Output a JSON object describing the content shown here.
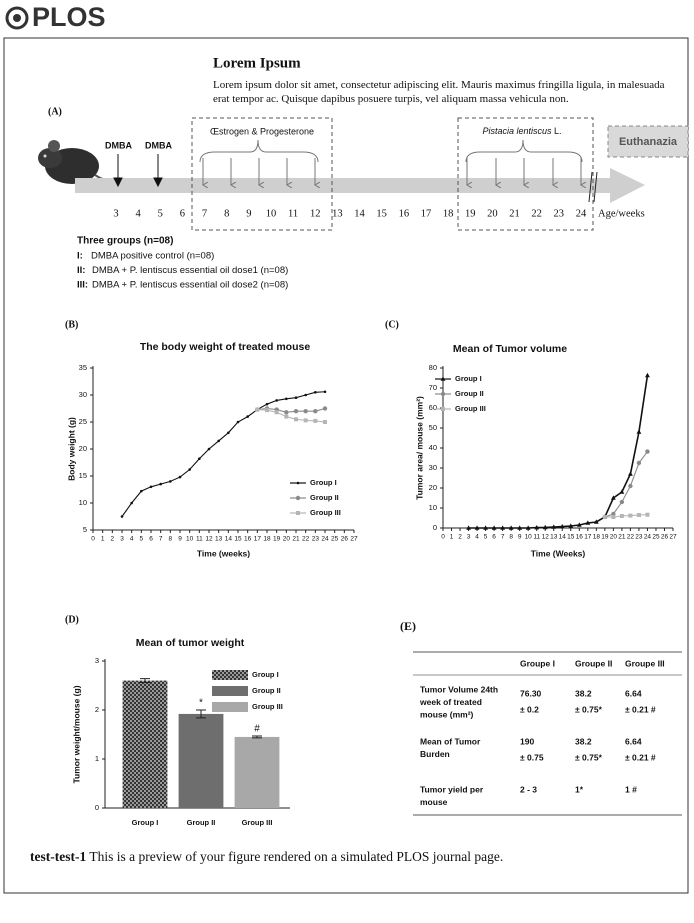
{
  "header": {
    "logo": "PLOS"
  },
  "article": {
    "title": "Lorem Ipsum",
    "body": "Lorem ipsum dolor sit amet, consectetur adipiscing elit. Mauris maximus fringilla ligula, in malesuada erat tempor ac. Quisque dapibus posuere turpis, vel aliquam massa vehicula non."
  },
  "timeline": {
    "label": "(A)",
    "dmba": [
      "DMBA",
      "DMBA"
    ],
    "hormone_label": "Œstrogen & Progesterone",
    "treatment_label": "Pistacia lentiscus",
    "treatment_suffix": "L.",
    "end_label": "Euthanazia",
    "weeks": [
      3,
      4,
      5,
      6,
      7,
      8,
      9,
      10,
      11,
      12,
      13,
      14,
      15,
      16,
      17,
      18,
      19,
      20,
      21,
      22,
      23,
      24
    ],
    "axis_label": "Age/weeks",
    "groups_title": "Three groups (n=08)",
    "groups": [
      {
        "num": "I:",
        "text": "DMBA positive control (n=08)"
      },
      {
        "num": "II:",
        "text": "DMBA + P. lentiscus essential oil dose1 (n=08)"
      },
      {
        "num": "III:",
        "text": "DMBA + P. lentiscus essential oil dose2 (n=08)"
      }
    ]
  },
  "chart_data": [
    {
      "type": "line",
      "label": "(B)",
      "title": "The body weight of treated mouse",
      "xlabel": "Time (weeks)",
      "ylabel": "Body weight (g)",
      "x": [
        3,
        4,
        5,
        6,
        7,
        8,
        9,
        10,
        11,
        12,
        13,
        14,
        15,
        16,
        17,
        18,
        19,
        20,
        21,
        22,
        23,
        24
      ],
      "series": [
        {
          "name": "Group I",
          "color": "#111111",
          "marker": "dot",
          "values": [
            7.5,
            10,
            12.2,
            13,
            13.5,
            14,
            14.8,
            16.2,
            18.2,
            20,
            21.5,
            23,
            25,
            26,
            27.3,
            28.3,
            29,
            29.3,
            29.5,
            30,
            30.5,
            30.6
          ]
        },
        {
          "name": "Group II",
          "color": "#8a8a8a",
          "marker": "circle",
          "values": [
            null,
            null,
            null,
            null,
            null,
            null,
            null,
            null,
            null,
            null,
            null,
            null,
            null,
            null,
            27.3,
            27.5,
            27.3,
            26.8,
            27,
            27,
            27,
            27.5
          ]
        },
        {
          "name": "Group III",
          "color": "#b5b5b5",
          "marker": "square",
          "values": [
            null,
            null,
            null,
            null,
            null,
            null,
            null,
            null,
            null,
            null,
            null,
            null,
            null,
            null,
            27.3,
            27.2,
            26.8,
            26,
            25.5,
            25.3,
            25.2,
            25
          ]
        }
      ],
      "xlim": [
        0,
        27
      ],
      "xticks": [
        0,
        1,
        2,
        3,
        4,
        5,
        6,
        7,
        8,
        9,
        10,
        11,
        12,
        13,
        14,
        15,
        16,
        17,
        18,
        19,
        20,
        21,
        22,
        23,
        24,
        25,
        26,
        27
      ],
      "ylim": [
        5,
        35
      ],
      "yticks": [
        5,
        10,
        15,
        20,
        25,
        30,
        35
      ],
      "legend": "lower right"
    },
    {
      "type": "line",
      "label": "(C)",
      "title": "Mean of Tumor volume",
      "xlabel": "Time (Weeks)",
      "ylabel": "Tumor area/ mouse (mm²)",
      "x": [
        3,
        4,
        5,
        6,
        7,
        8,
        9,
        10,
        11,
        12,
        13,
        14,
        15,
        16,
        17,
        18,
        19,
        20,
        21,
        22,
        23,
        24
      ],
      "series": [
        {
          "name": "Group I",
          "color": "#111111",
          "marker": "triangle",
          "values": [
            0,
            0,
            0,
            0,
            0,
            0,
            0,
            0,
            0.2,
            0.3,
            0.5,
            0.7,
            1,
            1.5,
            2.5,
            3,
            5.5,
            15,
            18,
            27,
            48,
            76.3
          ]
        },
        {
          "name": "Group II",
          "color": "#8a8a8a",
          "marker": "circle",
          "values": [
            null,
            null,
            null,
            null,
            null,
            null,
            null,
            null,
            null,
            null,
            null,
            null,
            null,
            null,
            null,
            null,
            5.5,
            7,
            13,
            21,
            32.5,
            38.2
          ]
        },
        {
          "name": "Group III",
          "color": "#b5b5b5",
          "marker": "square",
          "values": [
            null,
            null,
            null,
            null,
            null,
            null,
            null,
            null,
            null,
            null,
            null,
            null,
            null,
            null,
            null,
            null,
            5.5,
            5.5,
            6,
            6.2,
            6.5,
            6.64
          ]
        }
      ],
      "xlim": [
        0,
        27
      ],
      "xticks": [
        0,
        1,
        2,
        3,
        4,
        5,
        6,
        7,
        8,
        9,
        10,
        11,
        12,
        13,
        14,
        15,
        16,
        17,
        18,
        19,
        20,
        21,
        22,
        23,
        24,
        25,
        26,
        27
      ],
      "ylim": [
        0,
        80
      ],
      "yticks": [
        0,
        10,
        20,
        30,
        40,
        50,
        60,
        70,
        80
      ],
      "legend": "upper left"
    },
    {
      "type": "bar",
      "label": "(D)",
      "title": "Mean of tumor weight",
      "ylabel": "Tumor weight/mouse (g)",
      "categories": [
        "Group I",
        "Group II",
        "Group III"
      ],
      "values": [
        2.6,
        1.92,
        1.45
      ],
      "errors": [
        0.04,
        0.08,
        0.02
      ],
      "bar_labels": [
        null,
        "*",
        "#"
      ],
      "colors": [
        "#3a3a3a",
        "#6e6e6e",
        "#a8a8a8"
      ],
      "checkered": [
        true,
        false,
        false
      ],
      "ylim": [
        0,
        3
      ],
      "yticks": [
        0,
        1,
        2,
        3
      ],
      "legend": "upper right"
    }
  ],
  "table": {
    "label": "(E)",
    "header": [
      "Groupe I",
      "Groupe II",
      "Groupe III"
    ],
    "rows": [
      {
        "label": [
          "Tumor Volume 24th",
          "week  of treated",
          "mouse (mm²)"
        ],
        "cells": [
          [
            "76.30",
            "± 0.2"
          ],
          [
            "38.2",
            "± 0.75*"
          ],
          [
            "6.64",
            "± 0.21 #"
          ]
        ]
      },
      {
        "label": [
          "Mean of Tumor",
          "Burden"
        ],
        "cells": [
          [
            "190",
            "± 0.75"
          ],
          [
            "38.2",
            "± 0.75*"
          ],
          [
            "6.64",
            "±  0.21 #"
          ]
        ]
      },
      {
        "label": [
          "Tumor yield per",
          "mouse"
        ],
        "cells": [
          [
            "2 - 3"
          ],
          [
            "1*"
          ],
          [
            "1 #"
          ]
        ]
      }
    ]
  },
  "caption": {
    "id": "test-test-1",
    "text": "This is a preview of your figure rendered on a simulated PLOS journal page."
  }
}
